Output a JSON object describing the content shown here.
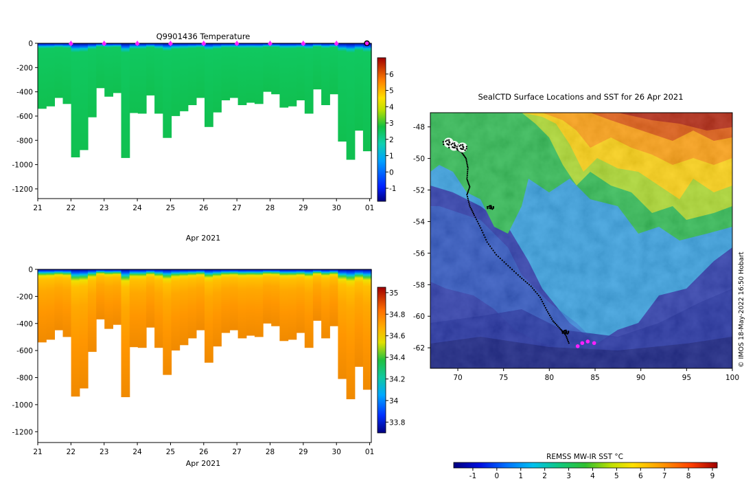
{
  "panel_top": {
    "title": "Q9901436  Temperature",
    "xlabel": "Apr 2021"
  },
  "panel_bottom": {
    "xlabel": "Apr 2021"
  },
  "map": {
    "title": "SealCTD Surface Locations and SST for 26 Apr 2021",
    "colorbar_label": "REMSS MW-IR SST °C",
    "credit": "© IMOS 18-May-2022 16:50 Hobart"
  },
  "chart_data": [
    {
      "type": "heatmap",
      "name": "temperature-profile",
      "title": "Q9901436  Temperature",
      "xlabel": "Apr 2021",
      "ylabel": "",
      "x_ticks": [
        "21",
        "22",
        "23",
        "24",
        "25",
        "26",
        "27",
        "28",
        "29",
        "30",
        "01"
      ],
      "y_ticks": [
        0,
        -200,
        -400,
        -600,
        -800,
        -1000,
        -1200
      ],
      "ylim": [
        -1280,
        0
      ],
      "colorbar": {
        "ticks": [
          -1,
          0,
          1,
          2,
          3,
          4,
          5,
          6
        ],
        "range": [
          -1.8,
          7
        ]
      },
      "surface_markers_days": [
        22,
        23,
        24,
        25,
        26,
        27,
        28,
        29,
        30
      ],
      "end_marker_day": 31,
      "profile_days": [
        21.05,
        21.3,
        21.55,
        21.8,
        22.05,
        22.3,
        22.55,
        22.8,
        23.05,
        23.3,
        23.55,
        23.8,
        24.05,
        24.3,
        24.55,
        24.8,
        25.05,
        25.3,
        25.55,
        25.8,
        26.05,
        26.3,
        26.55,
        26.8,
        27.05,
        27.3,
        27.55,
        27.8,
        28.05,
        28.3,
        28.55,
        28.8,
        29.05,
        29.3,
        29.55,
        29.8,
        30.05,
        30.3,
        30.55,
        30.8
      ],
      "profile_max_depth": [
        540,
        520,
        450,
        500,
        940,
        880,
        610,
        370,
        440,
        410,
        945,
        575,
        580,
        430,
        580,
        780,
        600,
        560,
        510,
        450,
        690,
        570,
        470,
        450,
        510,
        490,
        500,
        400,
        420,
        530,
        520,
        470,
        580,
        380,
        510,
        420,
        810,
        960,
        720,
        890
      ],
      "mixed_layer_temp": 2.6
    },
    {
      "type": "heatmap",
      "name": "salinity-profile",
      "title": "",
      "xlabel": "Apr 2021",
      "x_ticks": [
        "21",
        "22",
        "23",
        "24",
        "25",
        "26",
        "27",
        "28",
        "29",
        "30",
        "01"
      ],
      "y_ticks": [
        0,
        -200,
        -400,
        -600,
        -800,
        -1000,
        -1200
      ],
      "ylim": [
        -1280,
        0
      ],
      "colorbar": {
        "ticks": [
          33.8,
          34,
          34.2,
          34.4,
          34.6,
          34.8,
          35
        ],
        "range": [
          33.7,
          35.05
        ]
      }
    },
    {
      "type": "map",
      "name": "sst-map",
      "title": "SealCTD Surface Locations and SST for 26 Apr 2021",
      "x_ticks": [
        70,
        75,
        80,
        85,
        90,
        95,
        100
      ],
      "y_ticks": [
        -48,
        -50,
        -52,
        -54,
        -56,
        -58,
        -60,
        -62
      ],
      "xlim": [
        67,
        100
      ],
      "ylim": [
        -63.3,
        -47.1
      ],
      "colorbar": {
        "label": "REMSS MW-IR SST °C",
        "ticks": [
          -1,
          0,
          1,
          2,
          3,
          4,
          5,
          6,
          7,
          8,
          9
        ],
        "range": [
          -1.8,
          9.2
        ]
      },
      "track_lonlat": [
        [
          69.3,
          -49.1
        ],
        [
          69.8,
          -49.4
        ],
        [
          70.4,
          -49.6
        ],
        [
          70.9,
          -50.0
        ],
        [
          71.1,
          -50.6
        ],
        [
          71.0,
          -51.3
        ],
        [
          71.3,
          -51.8
        ],
        [
          71.0,
          -52.3
        ],
        [
          71.3,
          -53.0
        ],
        [
          71.8,
          -53.6
        ],
        [
          72.5,
          -54.4
        ],
        [
          73.2,
          -55.3
        ],
        [
          74.2,
          -56.1
        ],
        [
          75.5,
          -56.8
        ],
        [
          76.8,
          -57.5
        ],
        [
          78.0,
          -58.1
        ],
        [
          79.0,
          -58.8
        ],
        [
          79.7,
          -59.6
        ],
        [
          80.4,
          -60.3
        ],
        [
          81.2,
          -60.8
        ],
        [
          81.8,
          -61.2
        ],
        [
          82.2,
          -61.8
        ]
      ],
      "cluster_lonlat": [
        [
          69.0,
          -49.0
        ],
        [
          69.6,
          -49.2
        ],
        [
          70.5,
          -49.3
        ],
        [
          73.6,
          -53.1
        ],
        [
          81.8,
          -61.0
        ]
      ],
      "recent_positions_lonlat": [
        [
          83.1,
          -61.9
        ],
        [
          83.6,
          -61.7
        ],
        [
          84.2,
          -61.6
        ],
        [
          84.9,
          -61.7
        ]
      ]
    }
  ]
}
